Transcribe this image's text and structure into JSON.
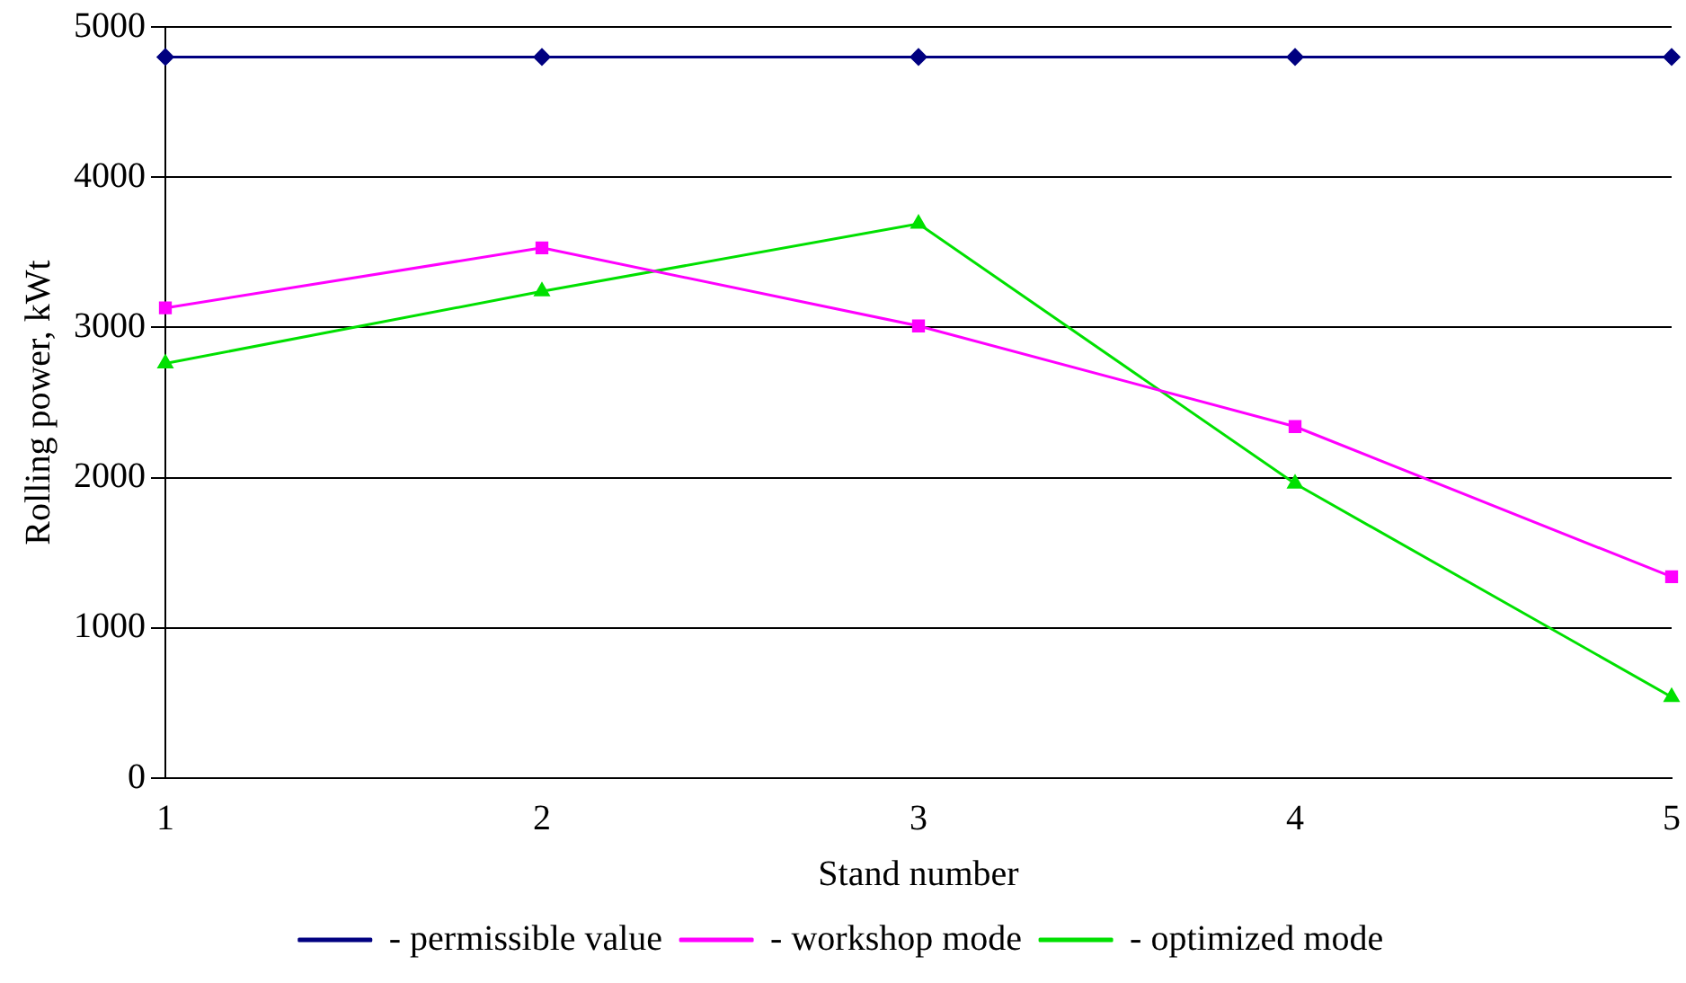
{
  "chart_data": {
    "type": "line",
    "xlabel": "Stand number",
    "ylabel": "Rolling power, kWt",
    "categories": [
      "1",
      "2",
      "3",
      "4",
      "5"
    ],
    "series": [
      {
        "name": "- permissible value",
        "color": "#000080",
        "marker": "diamond",
        "values": [
          4800,
          4800,
          4800,
          4800,
          4800
        ]
      },
      {
        "name": "- workshop mode",
        "color": "#ff00ff",
        "marker": "square",
        "values": [
          3130,
          3530,
          3010,
          2340,
          1340
        ]
      },
      {
        "name": "- optimized mode",
        "color": "#00e000",
        "marker": "triangle",
        "values": [
          2760,
          3240,
          3690,
          1960,
          540
        ]
      }
    ],
    "ylim": [
      0,
      5000
    ],
    "yticks": [
      0,
      1000,
      2000,
      3000,
      4000,
      5000
    ],
    "grid": "y",
    "legend": "bottom"
  }
}
